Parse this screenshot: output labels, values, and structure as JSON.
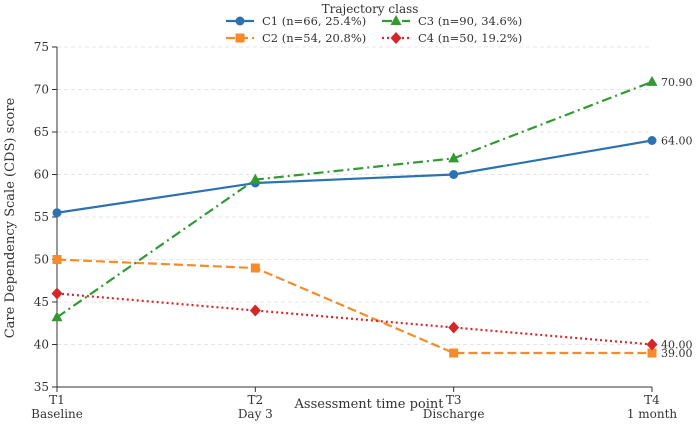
{
  "chart_data": {
    "type": "line",
    "xlabel": "Assessment time point",
    "ylabel": "Care Dependency Scale (CDS) score",
    "categories": [
      {
        "code": "T1",
        "name": "Baseline"
      },
      {
        "code": "T2",
        "name": "Day 3"
      },
      {
        "code": "T3",
        "name": "Discharge"
      },
      {
        "code": "T4",
        "name": "1 month"
      }
    ],
    "ylim": [
      35,
      75
    ],
    "yticks": [
      35,
      40,
      45,
      50,
      55,
      60,
      65,
      70,
      75
    ],
    "grid": "horizontal dashed",
    "legend": {
      "title": "Trajectory class",
      "placement": "top-center",
      "columns": 2
    },
    "series": [
      {
        "name": "C1 (n=66, 25.4%)",
        "values": [
          55.5,
          59.0,
          60.0,
          64.0
        ],
        "color": "#2c72b0",
        "dash": "solid",
        "marker": "circle",
        "end_label": "64.00"
      },
      {
        "name": "C2 (n=54, 20.8%)",
        "values": [
          50.0,
          49.0,
          39.0,
          39.0
        ],
        "color": "#f78b2a",
        "dash": "dashed",
        "marker": "square",
        "end_label": "39.00"
      },
      {
        "name": "C3 (n=90, 34.6%)",
        "values": [
          43.2,
          59.4,
          61.9,
          70.9
        ],
        "color": "#339933",
        "dash": "dashdot",
        "marker": "triangle",
        "end_label": "70.90"
      },
      {
        "name": "C4 (n=50, 19.2%)",
        "values": [
          46.0,
          44.0,
          42.0,
          40.0
        ],
        "color": "#d62728",
        "dash": "dotted",
        "marker": "diamond",
        "end_label": "40.00"
      }
    ]
  }
}
